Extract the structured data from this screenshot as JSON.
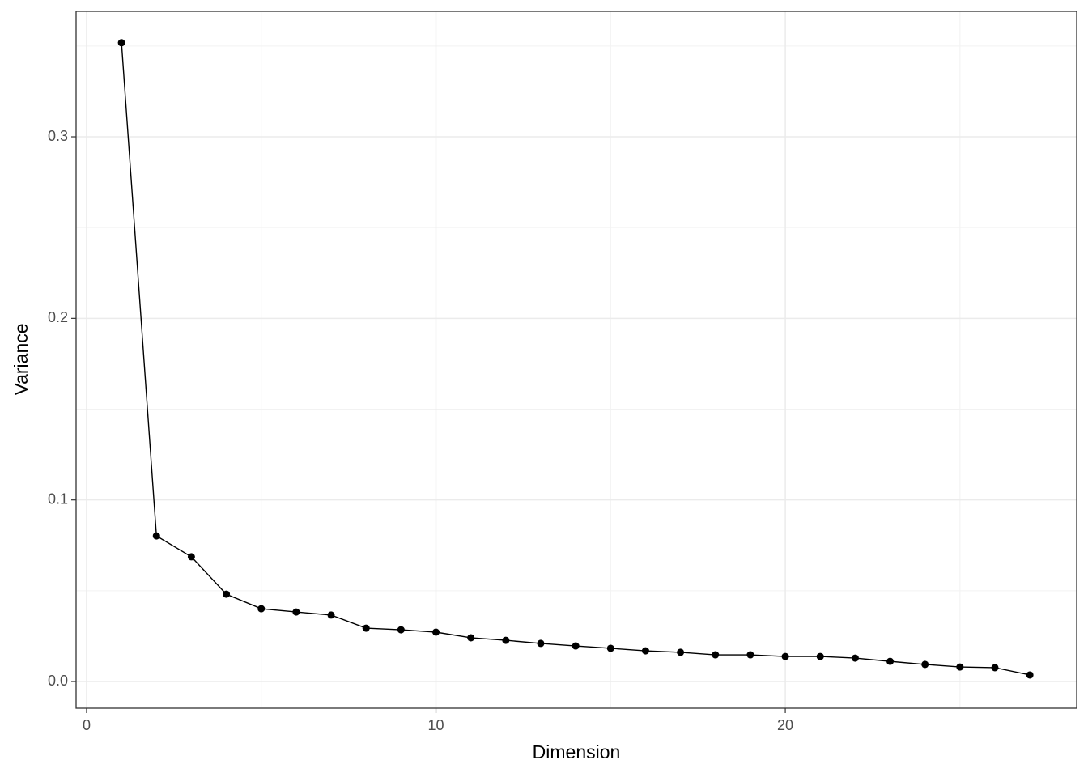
{
  "chart_data": {
    "type": "line",
    "xlabel": "Dimension",
    "ylabel": "Variance",
    "x": [
      1,
      2,
      3,
      4,
      5,
      6,
      7,
      8,
      9,
      10,
      11,
      12,
      13,
      14,
      15,
      16,
      17,
      18,
      19,
      20,
      21,
      22,
      23,
      24,
      25,
      26,
      27
    ],
    "series": [
      {
        "color": "#000000",
        "values": [
          0.3518,
          0.0802,
          0.0687,
          0.0481,
          0.0401,
          0.0383,
          0.0366,
          0.0294,
          0.0285,
          0.0272,
          0.0241,
          0.0227,
          0.021,
          0.0196,
          0.0183,
          0.0169,
          0.0161,
          0.0147,
          0.0147,
          0.0138,
          0.0138,
          0.0129,
          0.0111,
          0.0094,
          0.008,
          0.0076,
          0.0036
        ]
      }
    ],
    "xlim": [
      -0.3,
      28.34
    ],
    "ylim": [
      -0.0147,
      0.3691
    ],
    "xticks": [
      0,
      10,
      20
    ],
    "yticks": [
      {
        "value": 0,
        "label": "0.0"
      },
      0.1,
      0.2,
      0.3
    ],
    "xminor": [
      5,
      15,
      25
    ],
    "yminor": [
      0.05,
      0.15,
      0.25,
      0.35
    ],
    "grid": true
  }
}
